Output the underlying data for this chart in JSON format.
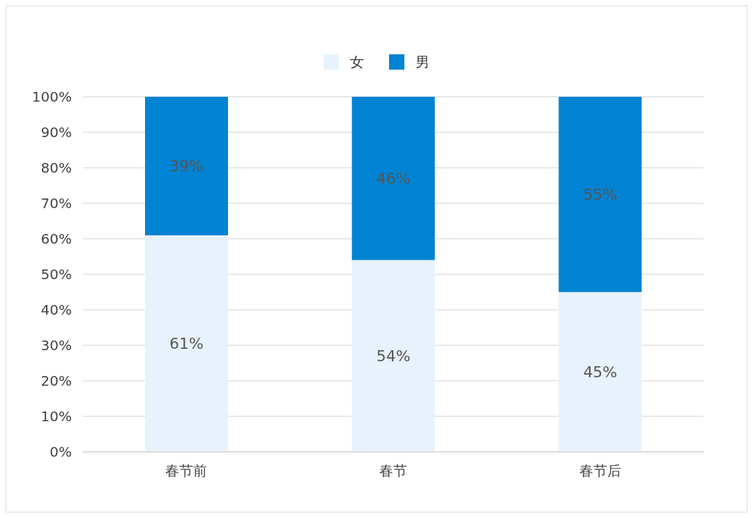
{
  "chart_data": {
    "type": "bar",
    "stacked": true,
    "categories": [
      "春节前",
      "春节",
      "春节后"
    ],
    "series": [
      {
        "name": "女",
        "color": "#e8f2fc",
        "values": [
          61,
          54,
          45
        ],
        "value_labels": [
          "61%",
          "54%",
          "45%"
        ]
      },
      {
        "name": "男",
        "color": "#0083d3",
        "values": [
          39,
          46,
          55
        ],
        "value_labels": [
          "39%",
          "46%",
          "55%"
        ]
      }
    ],
    "ylim": [
      0,
      100
    ],
    "yticks": [
      {
        "value": 0,
        "label": "0%"
      },
      {
        "value": 10,
        "label": "10%"
      },
      {
        "value": 20,
        "label": "20%"
      },
      {
        "value": 30,
        "label": "30%"
      },
      {
        "value": 40,
        "label": "40%"
      },
      {
        "value": 50,
        "label": "50%"
      },
      {
        "value": 60,
        "label": "60%"
      },
      {
        "value": 70,
        "label": "70%"
      },
      {
        "value": 80,
        "label": "80%"
      },
      {
        "value": 90,
        "label": "90%"
      },
      {
        "value": 100,
        "label": "100%"
      }
    ],
    "grid": "y",
    "legend": "top"
  }
}
